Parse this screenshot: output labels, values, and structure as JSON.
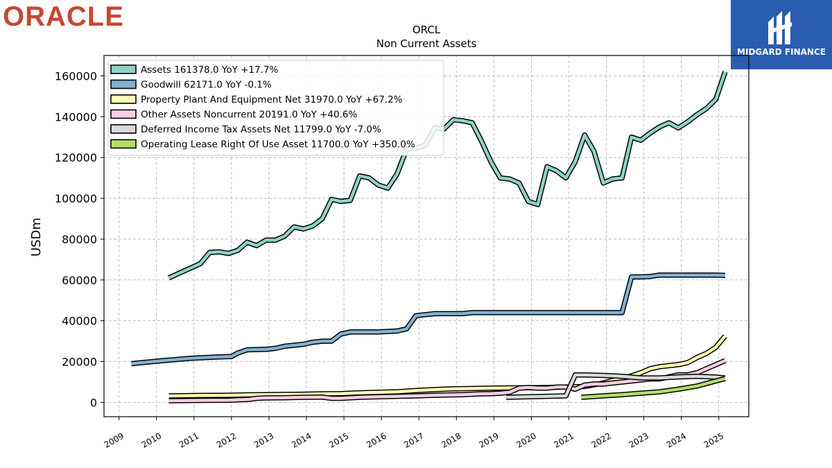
{
  "brand": {
    "left_logo": "ORACLE",
    "right_logo": "MIDGARD FINANCE"
  },
  "chart_data": {
    "type": "line",
    "title": "ORCL",
    "subtitle": "Non Current  Assets",
    "ylabel": "USDm",
    "xlabel": "",
    "xlim": [
      2008.6,
      2025.8
    ],
    "ylim": [
      -7000,
      170000
    ],
    "yticks": [
      0,
      20000,
      40000,
      60000,
      80000,
      100000,
      120000,
      140000,
      160000
    ],
    "ytick_labels": [
      "0",
      "20000",
      "40000",
      "60000",
      "80000",
      "100000",
      "120000",
      "140000",
      "160000"
    ],
    "xticks": [
      2009,
      2010,
      2011,
      2012,
      2013,
      2014,
      2015,
      2016,
      2017,
      2018,
      2019,
      2020,
      2021,
      2022,
      2023,
      2024,
      2025
    ],
    "xtick_labels": [
      "2009",
      "2010",
      "2011",
      "2012",
      "2013",
      "2014",
      "2015",
      "2016",
      "2017",
      "2018",
      "2019",
      "2020",
      "2021",
      "2022",
      "2023",
      "2024",
      "2025"
    ],
    "grid": true,
    "legend_position": "top-left",
    "series": [
      {
        "name": "Assets  161378.0 YoY +17.7%",
        "color": "#8dd3c7",
        "points": [
          [
            2010.33,
            61000
          ],
          [
            2011.17,
            68000
          ],
          [
            2011.42,
            73500
          ],
          [
            2011.67,
            73800
          ],
          [
            2011.92,
            73000
          ],
          [
            2012.17,
            74500
          ],
          [
            2012.42,
            78500
          ],
          [
            2012.67,
            76800
          ],
          [
            2012.92,
            79500
          ],
          [
            2013.17,
            79500
          ],
          [
            2013.42,
            81500
          ],
          [
            2013.67,
            86000
          ],
          [
            2013.92,
            85000
          ],
          [
            2014.17,
            86500
          ],
          [
            2014.42,
            90000
          ],
          [
            2014.67,
            99500
          ],
          [
            2014.92,
            98500
          ],
          [
            2015.17,
            99000
          ],
          [
            2015.42,
            111000
          ],
          [
            2015.67,
            110000
          ],
          [
            2015.92,
            106500
          ],
          [
            2016.17,
            105000
          ],
          [
            2016.42,
            112000
          ],
          [
            2016.67,
            124000
          ],
          [
            2016.92,
            124500
          ],
          [
            2017.17,
            126000
          ],
          [
            2017.42,
            134500
          ],
          [
            2017.67,
            134000
          ],
          [
            2017.92,
            138500
          ],
          [
            2018.17,
            138000
          ],
          [
            2018.42,
            137000
          ],
          [
            2018.67,
            128000
          ],
          [
            2018.92,
            118000
          ],
          [
            2019.17,
            110000
          ],
          [
            2019.42,
            109500
          ],
          [
            2019.67,
            107500
          ],
          [
            2019.92,
            98500
          ],
          [
            2020.17,
            97000
          ],
          [
            2020.42,
            115500
          ],
          [
            2020.67,
            113500
          ],
          [
            2020.92,
            110000
          ],
          [
            2021.17,
            118000
          ],
          [
            2021.42,
            131000
          ],
          [
            2021.67,
            123000
          ],
          [
            2021.92,
            107500
          ],
          [
            2022.17,
            109500
          ],
          [
            2022.42,
            110000
          ],
          [
            2022.67,
            130000
          ],
          [
            2022.92,
            128500
          ],
          [
            2023.17,
            132000
          ],
          [
            2023.42,
            135000
          ],
          [
            2023.67,
            137000
          ],
          [
            2023.92,
            134500
          ],
          [
            2024.17,
            137500
          ],
          [
            2024.42,
            141000
          ],
          [
            2024.67,
            144000
          ],
          [
            2024.92,
            148500
          ],
          [
            2025.17,
            162000
          ]
        ]
      },
      {
        "name": "Goodwill  62171.0 YoY -0.1%",
        "color": "#80b1d3",
        "points": [
          [
            2009.33,
            19000
          ],
          [
            2010.17,
            20500
          ],
          [
            2010.92,
            21600
          ],
          [
            2011.67,
            22300
          ],
          [
            2012.0,
            22500
          ],
          [
            2012.17,
            24200
          ],
          [
            2012.42,
            25800
          ],
          [
            2012.92,
            26000
          ],
          [
            2013.17,
            26500
          ],
          [
            2013.42,
            27500
          ],
          [
            2013.67,
            28000
          ],
          [
            2013.92,
            28500
          ],
          [
            2014.17,
            29500
          ],
          [
            2014.42,
            30000
          ],
          [
            2014.67,
            30000
          ],
          [
            2014.92,
            33500
          ],
          [
            2015.17,
            34500
          ],
          [
            2015.42,
            34500
          ],
          [
            2015.92,
            34500
          ],
          [
            2016.42,
            35000
          ],
          [
            2016.67,
            36000
          ],
          [
            2016.92,
            42500
          ],
          [
            2017.17,
            43000
          ],
          [
            2017.42,
            43500
          ],
          [
            2017.92,
            43500
          ],
          [
            2018.17,
            43500
          ],
          [
            2018.42,
            44000
          ],
          [
            2018.92,
            44000
          ],
          [
            2019.42,
            44000
          ],
          [
            2019.92,
            44000
          ],
          [
            2020.42,
            44000
          ],
          [
            2020.92,
            44000
          ],
          [
            2021.42,
            44000
          ],
          [
            2021.92,
            44000
          ],
          [
            2022.42,
            44000
          ],
          [
            2022.67,
            61500
          ],
          [
            2022.92,
            61500
          ],
          [
            2023.17,
            61700
          ],
          [
            2023.42,
            62400
          ],
          [
            2023.92,
            62400
          ],
          [
            2024.42,
            62400
          ],
          [
            2024.92,
            62400
          ],
          [
            2025.17,
            62200
          ]
        ]
      },
      {
        "name": "Property Plant And Equipment Net  31970.0 YoY +67.2%",
        "color": "#ffffb3",
        "points": [
          [
            2010.33,
            3200
          ],
          [
            2011.17,
            3400
          ],
          [
            2011.92,
            3500
          ],
          [
            2012.42,
            3700
          ],
          [
            2012.92,
            3800
          ],
          [
            2013.42,
            3900
          ],
          [
            2013.92,
            4000
          ],
          [
            2014.42,
            4200
          ],
          [
            2014.92,
            4300
          ],
          [
            2015.42,
            4700
          ],
          [
            2015.92,
            5000
          ],
          [
            2016.42,
            5200
          ],
          [
            2016.92,
            5800
          ],
          [
            2017.42,
            6300
          ],
          [
            2017.92,
            6700
          ],
          [
            2018.42,
            6800
          ],
          [
            2018.92,
            7000
          ],
          [
            2019.42,
            7100
          ],
          [
            2019.92,
            7200
          ],
          [
            2020.42,
            7300
          ],
          [
            2020.92,
            7500
          ],
          [
            2021.42,
            7800
          ],
          [
            2021.92,
            9500
          ],
          [
            2022.42,
            12000
          ],
          [
            2022.67,
            13000
          ],
          [
            2022.92,
            14500
          ],
          [
            2023.17,
            16500
          ],
          [
            2023.42,
            17500
          ],
          [
            2023.67,
            18000
          ],
          [
            2023.92,
            18500
          ],
          [
            2024.17,
            19500
          ],
          [
            2024.42,
            22000
          ],
          [
            2024.67,
            24000
          ],
          [
            2024.92,
            27000
          ],
          [
            2025.17,
            32500
          ]
        ]
      },
      {
        "name": "Other Assets Noncurrent  20191.0 YoY +40.6%",
        "color": "#fccde5",
        "points": [
          [
            2010.33,
            800
          ],
          [
            2011.17,
            1000
          ],
          [
            2011.92,
            1100
          ],
          [
            2012.17,
            1300
          ],
          [
            2012.42,
            1400
          ],
          [
            2012.67,
            2000
          ],
          [
            2012.92,
            2200
          ],
          [
            2013.42,
            2300
          ],
          [
            2013.92,
            2500
          ],
          [
            2014.42,
            2600
          ],
          [
            2014.67,
            2000
          ],
          [
            2014.92,
            2000
          ],
          [
            2015.42,
            2500
          ],
          [
            2015.92,
            2800
          ],
          [
            2016.42,
            3000
          ],
          [
            2016.92,
            3200
          ],
          [
            2017.42,
            3500
          ],
          [
            2017.92,
            3700
          ],
          [
            2018.17,
            3800
          ],
          [
            2018.42,
            4000
          ],
          [
            2018.67,
            4200
          ],
          [
            2018.92,
            4300
          ],
          [
            2019.17,
            4500
          ],
          [
            2019.42,
            5000
          ],
          [
            2019.67,
            7000
          ],
          [
            2019.92,
            7300
          ],
          [
            2020.17,
            7000
          ],
          [
            2020.42,
            7000
          ],
          [
            2020.67,
            7500
          ],
          [
            2020.92,
            7500
          ],
          [
            2021.17,
            6500
          ],
          [
            2021.42,
            8500
          ],
          [
            2021.67,
            9000
          ],
          [
            2021.92,
            9000
          ],
          [
            2022.17,
            9500
          ],
          [
            2022.42,
            10000
          ],
          [
            2022.67,
            10500
          ],
          [
            2022.92,
            11000
          ],
          [
            2023.17,
            11500
          ],
          [
            2023.42,
            11500
          ],
          [
            2023.67,
            12500
          ],
          [
            2023.92,
            13500
          ],
          [
            2024.17,
            13500
          ],
          [
            2024.42,
            14500
          ],
          [
            2024.67,
            16500
          ],
          [
            2024.92,
            18500
          ],
          [
            2025.17,
            20500
          ]
        ]
      },
      {
        "name": "Deferred Income Tax Assets Net  11799.0 YoY -7.0%",
        "color": "#d9d9d9",
        "points": [
          [
            2019.33,
            2500
          ],
          [
            2019.92,
            2800
          ],
          [
            2020.42,
            3000
          ],
          [
            2020.92,
            3200
          ],
          [
            2021.17,
            13500
          ],
          [
            2021.42,
            13500
          ],
          [
            2021.92,
            13200
          ],
          [
            2022.42,
            12800
          ],
          [
            2022.92,
            12000
          ],
          [
            2023.42,
            12000
          ],
          [
            2023.92,
            12500
          ],
          [
            2024.42,
            12800
          ],
          [
            2024.92,
            12400
          ],
          [
            2025.17,
            12000
          ]
        ]
      },
      {
        "name": "Operating Lease Right Of Use Asset  11700.0 YoY +350.0%",
        "color": "#b3de69",
        "points": [
          [
            2021.33,
            2500
          ],
          [
            2021.92,
            3200
          ],
          [
            2022.42,
            3800
          ],
          [
            2022.92,
            4500
          ],
          [
            2023.42,
            5200
          ],
          [
            2023.92,
            6500
          ],
          [
            2024.42,
            8000
          ],
          [
            2024.92,
            10500
          ],
          [
            2025.17,
            11700
          ]
        ]
      }
    ]
  }
}
